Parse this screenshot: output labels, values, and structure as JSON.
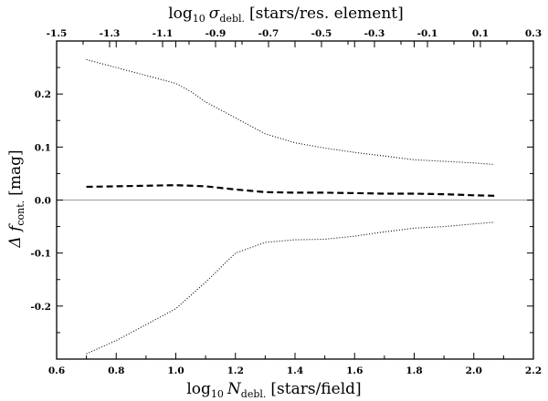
{
  "chart_data": {
    "type": "line",
    "xlabel": {
      "prefix": "log",
      "prefix_sub": "10",
      "var": "N",
      "var_sub": "debl.",
      "unit": "[stars/field]"
    },
    "x2label": {
      "prefix": "log",
      "prefix_sub": "10",
      "var": "σ",
      "var_sub": "debl.",
      "unit": "[stars/res. element]"
    },
    "ylabel": {
      "var": "Δ f",
      "var_sub": "cont.",
      "unit": "[mag]"
    },
    "xlim": [
      0.6,
      2.2
    ],
    "x2lim": [
      -1.5,
      0.3
    ],
    "ylim": [
      -0.3,
      0.3
    ],
    "x_ticks": [
      0.6,
      0.8,
      1.0,
      1.2,
      1.4,
      1.6,
      1.8,
      2.0,
      2.2
    ],
    "x_tick_labels": [
      "0.6",
      "0.8",
      "1.0",
      "1.2",
      "1.4",
      "1.6",
      "1.8",
      "2.0",
      "2.2"
    ],
    "x2_ticks": [
      -1.5,
      -1.3,
      -1.1,
      -0.9,
      -0.7,
      -0.5,
      -0.3,
      -0.1,
      0.1,
      0.3
    ],
    "x2_tick_labels": [
      "-1.5",
      "-1.3",
      "-1.1",
      "-0.9",
      "-0.7",
      "-0.5",
      "-0.3",
      "-0.1",
      "0.1",
      "0.3"
    ],
    "y_ticks": [
      -0.2,
      -0.1,
      0.0,
      0.1,
      0.2
    ],
    "y_tick_labels": [
      "-0.2",
      "-0.1",
      "0.0",
      "0.1",
      "0.2"
    ],
    "reference_line_y": 0.0,
    "series": [
      {
        "style": "dotted",
        "x": [
          0.7,
          0.8,
          0.9,
          1.0,
          1.05,
          1.1,
          1.2,
          1.3,
          1.4,
          1.5,
          1.6,
          1.7,
          1.8,
          1.9,
          2.0,
          2.07
        ],
        "y": [
          0.265,
          0.25,
          0.235,
          0.22,
          0.205,
          0.185,
          0.155,
          0.125,
          0.108,
          0.098,
          0.09,
          0.083,
          0.076,
          0.073,
          0.07,
          0.067
        ]
      },
      {
        "style": "dashed",
        "x": [
          0.7,
          0.8,
          0.9,
          1.0,
          1.1,
          1.2,
          1.3,
          1.4,
          1.5,
          1.6,
          1.7,
          1.8,
          1.9,
          2.0,
          2.07
        ],
        "y": [
          0.025,
          0.026,
          0.027,
          0.028,
          0.026,
          0.02,
          0.015,
          0.014,
          0.014,
          0.013,
          0.012,
          0.012,
          0.011,
          0.009,
          0.008
        ]
      },
      {
        "style": "dotted",
        "x": [
          0.7,
          0.8,
          0.9,
          1.0,
          1.1,
          1.2,
          1.3,
          1.4,
          1.5,
          1.6,
          1.7,
          1.8,
          1.9,
          2.0,
          2.07
        ],
        "y": [
          -0.29,
          -0.265,
          -0.235,
          -0.205,
          -0.155,
          -0.1,
          -0.08,
          -0.075,
          -0.074,
          -0.068,
          -0.06,
          -0.053,
          -0.05,
          -0.045,
          -0.042
        ]
      }
    ]
  }
}
